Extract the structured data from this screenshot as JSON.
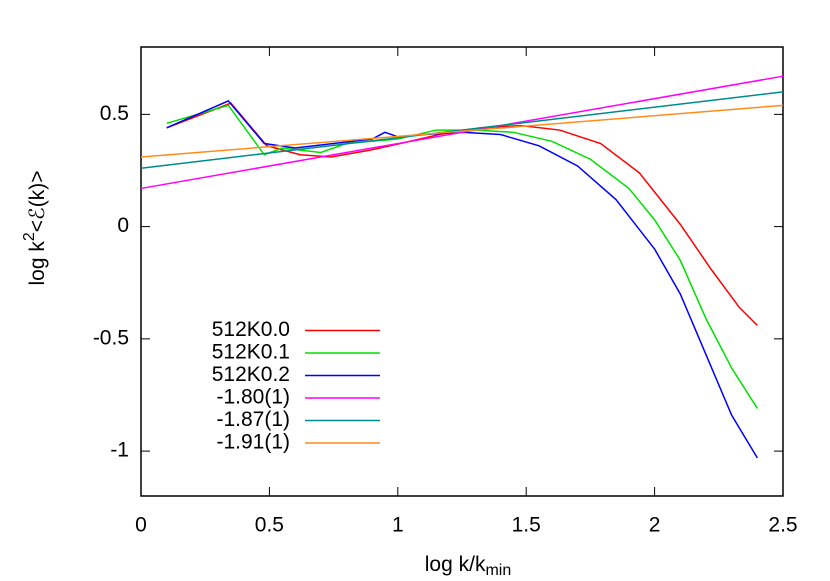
{
  "chart_data": {
    "type": "line",
    "xlabel": [
      "log k/k",
      "min"
    ],
    "ylabel": [
      "log k",
      "2",
      "<ℰ(k)>"
    ],
    "xlim": [
      0,
      2.5
    ],
    "ylim": [
      -1.2,
      0.8
    ],
    "xticks": [
      0,
      0.5,
      1,
      1.5,
      2,
      2.5
    ],
    "yticks": [
      -1,
      -0.5,
      0,
      0.5
    ],
    "legend": "bottom-left",
    "series": [
      {
        "name": "512K0.0",
        "color": "#ff0000",
        "x": [
          0.1,
          0.35,
          0.49,
          0.62,
          0.74,
          0.89,
          1.01,
          1.16,
          1.32,
          1.48,
          1.63,
          1.79,
          1.94,
          2.1,
          2.22,
          2.33,
          2.4
        ],
        "values": [
          0.44,
          0.55,
          0.36,
          0.32,
          0.31,
          0.34,
          0.37,
          0.41,
          0.44,
          0.45,
          0.43,
          0.37,
          0.24,
          0.01,
          -0.19,
          -0.36,
          -0.44
        ]
      },
      {
        "name": "512K0.1",
        "color": "#00e000",
        "x": [
          0.1,
          0.34,
          0.48,
          0.55,
          0.7,
          0.8,
          1.0,
          1.15,
          1.3,
          1.45,
          1.6,
          1.75,
          1.9,
          2.0,
          2.1,
          2.2,
          2.3,
          2.4
        ],
        "values": [
          0.46,
          0.54,
          0.32,
          0.35,
          0.33,
          0.37,
          0.39,
          0.43,
          0.43,
          0.42,
          0.38,
          0.3,
          0.17,
          0.03,
          -0.15,
          -0.41,
          -0.63,
          -0.81
        ]
      },
      {
        "name": "512K0.2",
        "color": "#0000ff",
        "x": [
          0.1,
          0.34,
          0.48,
          0.6,
          0.75,
          0.9,
          0.95,
          1.0,
          1.1,
          1.25,
          1.4,
          1.55,
          1.7,
          1.85,
          2.0,
          2.1,
          2.2,
          2.3,
          2.4
        ],
        "values": [
          0.44,
          0.56,
          0.37,
          0.35,
          0.37,
          0.39,
          0.42,
          0.4,
          0.41,
          0.42,
          0.41,
          0.36,
          0.27,
          0.12,
          -0.1,
          -0.3,
          -0.57,
          -0.84,
          -1.03
        ]
      },
      {
        "name": "-1.80(1)",
        "color": "#ff00ff",
        "x": [
          0,
          2.5
        ],
        "values": [
          0.17,
          0.67
        ]
      },
      {
        "name": "-1.87(1)",
        "color": "#008b8b",
        "x": [
          0,
          2.5
        ],
        "values": [
          0.26,
          0.6
        ]
      },
      {
        "name": "-1.91(1)",
        "color": "#ff8c1a",
        "x": [
          0,
          2.5
        ],
        "values": [
          0.31,
          0.54
        ]
      }
    ]
  }
}
